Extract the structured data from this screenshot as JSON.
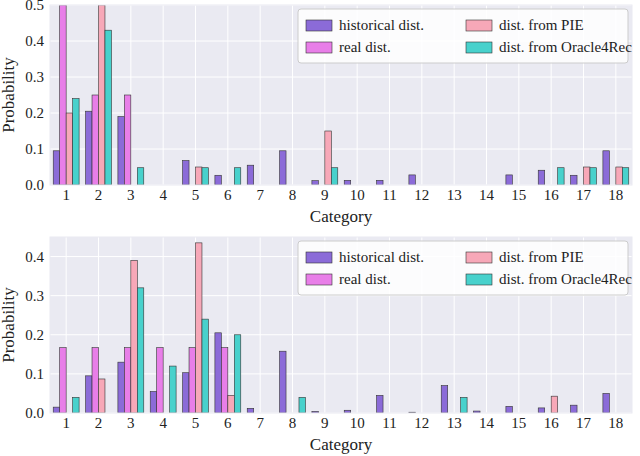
{
  "chart_data": [
    {
      "type": "bar",
      "x_label": "Category",
      "y_label": "Probability",
      "categories": [
        "1",
        "2",
        "3",
        "4",
        "5",
        "6",
        "7",
        "8",
        "9",
        "10",
        "11",
        "12",
        "13",
        "14",
        "15",
        "16",
        "17",
        "18"
      ],
      "series": [
        {
          "name": "historical dist.",
          "color": "#8b6bd8",
          "values": [
            0.095,
            0.205,
            0.19,
            0,
            0.068,
            0.027,
            0.055,
            0.095,
            0.012,
            0.013,
            0.013,
            0.028,
            0,
            0,
            0.028,
            0.041,
            0.027,
            0.095
          ]
        },
        {
          "name": "real dist.",
          "color": "#e87ee8",
          "values": [
            0.5,
            0.25,
            0.25,
            0,
            0,
            0,
            0,
            0,
            0,
            0,
            0,
            0,
            0,
            0,
            0,
            0,
            0,
            0
          ]
        },
        {
          "name": "dist. from PIE",
          "color": "#f7a8b8",
          "values": [
            0.2,
            0.5,
            0,
            0,
            0.05,
            0,
            0,
            0,
            0.15,
            0,
            0,
            0,
            0,
            0,
            0,
            0,
            0.05,
            0.05
          ]
        },
        {
          "name": "dist. from Oracle4Rec",
          "color": "#48d1cc",
          "values": [
            0.24,
            0.43,
            0.048,
            0,
            0.048,
            0.048,
            0,
            0,
            0.048,
            0,
            0,
            0,
            0,
            0,
            0,
            0.048,
            0.048,
            0.048
          ]
        }
      ],
      "ylim": [
        0,
        0.5
      ],
      "yticks": [
        {
          "value": 0,
          "label": "0.0"
        },
        0.1,
        0.2,
        0.3,
        0.4,
        0.5
      ],
      "grid": true,
      "legend": "upper right"
    },
    {
      "type": "bar",
      "x_label": "Category",
      "y_label": "Probability",
      "categories": [
        "1",
        "2",
        "3",
        "4",
        "5",
        "6",
        "7",
        "8",
        "9",
        "10",
        "11",
        "12",
        "13",
        "14",
        "15",
        "16",
        "17",
        "18"
      ],
      "series": [
        {
          "name": "historical dist.",
          "color": "#8b6bd8",
          "values": [
            0.015,
            0.095,
            0.13,
            0.055,
            0.103,
            0.205,
            0.012,
            0.158,
            0.004,
            0.007,
            0.045,
            0.002,
            0.07,
            0.005,
            0.017,
            0.013,
            0.02,
            0.05
          ]
        },
        {
          "name": "real dist.",
          "color": "#e87ee8",
          "values": [
            0.167,
            0.167,
            0.167,
            0.167,
            0.167,
            0.167,
            0,
            0,
            0,
            0,
            0,
            0,
            0,
            0,
            0,
            0,
            0,
            0
          ]
        },
        {
          "name": "dist. from PIE",
          "color": "#f7a8b8",
          "values": [
            0,
            0.087,
            0.39,
            0,
            0.435,
            0.045,
            0,
            0,
            0,
            0,
            0,
            0,
            0,
            0,
            0,
            0.043,
            0,
            0
          ]
        },
        {
          "name": "dist. from Oracle4Rec",
          "color": "#48d1cc",
          "values": [
            0.04,
            0,
            0.32,
            0.12,
            0.24,
            0.2,
            0,
            0.04,
            0,
            0,
            0,
            0,
            0.04,
            0,
            0,
            0,
            0,
            0
          ]
        }
      ],
      "ylim": [
        0,
        0.45
      ],
      "yticks": [
        {
          "value": 0,
          "label": "0.0"
        },
        0.1,
        0.2,
        0.3,
        0.4
      ],
      "grid": true,
      "legend": "upper right"
    }
  ]
}
